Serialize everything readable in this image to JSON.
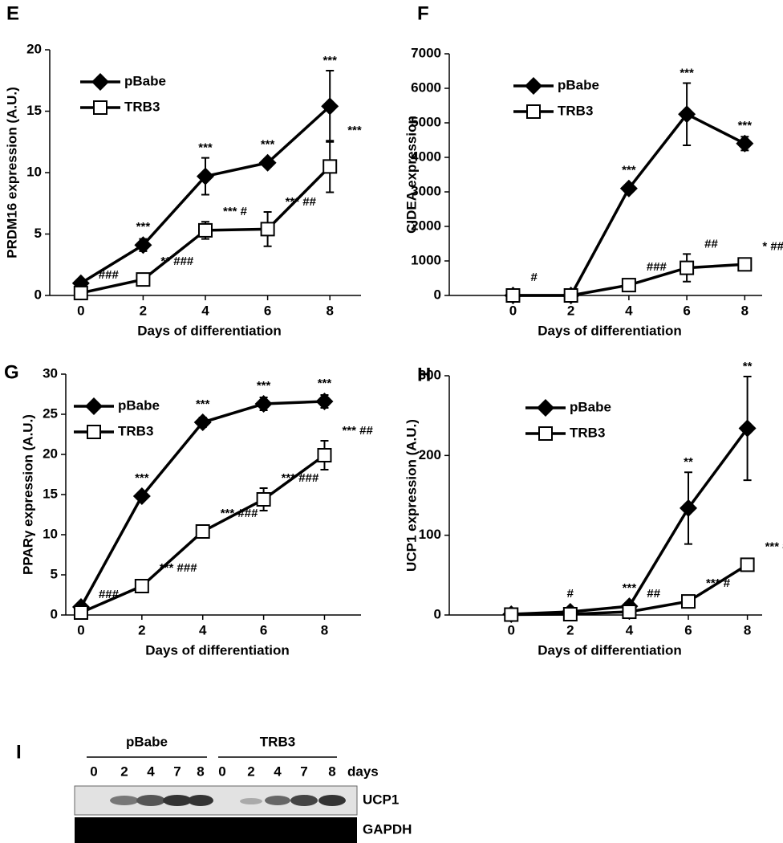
{
  "chart_data": [
    {
      "type": "line",
      "panel": "E",
      "ylabel": "PRDM16 expression (A.U.)",
      "xlabel": "Days of differentiation",
      "x": [
        0,
        2,
        4,
        6,
        8
      ],
      "xlim": [
        -1,
        9
      ],
      "xticks": [
        0,
        2,
        4,
        6,
        8
      ],
      "ylim": [
        0,
        20
      ],
      "yticks": [
        0,
        5,
        10,
        15,
        20
      ],
      "legend": "upper left",
      "series": [
        {
          "name": "pBabe",
          "color": "#000000",
          "marker": "diamond",
          "values": [
            1,
            4.1,
            9.7,
            10.8,
            15.4
          ],
          "errors": [
            0.3,
            0.5,
            1.5,
            0.3,
            2.9
          ],
          "annotations": [
            null,
            "***",
            "***",
            "***",
            "***"
          ]
        },
        {
          "name": "TRB3",
          "color": "#000000",
          "marker": "square",
          "values": [
            0.2,
            1.3,
            5.3,
            5.4,
            10.5
          ],
          "errors": [
            0.1,
            0.2,
            0.7,
            1.4,
            2.1
          ],
          "annotations": [
            "###",
            "** ###",
            "*** #",
            "*** ##",
            "***"
          ]
        }
      ]
    },
    {
      "type": "line",
      "panel": "F",
      "ylabel": "CIDEA expression",
      "xlabel": "Days of differentiation",
      "x": [
        0,
        2,
        4,
        6,
        8
      ],
      "xlim": [
        -2.2,
        8.6
      ],
      "xticks": [
        0,
        2,
        4,
        6,
        8
      ],
      "ylim": [
        0,
        7000
      ],
      "yticks": [
        0,
        1000,
        2000,
        3000,
        4000,
        5000,
        6000,
        7000
      ],
      "legend": "upper left",
      "series": [
        {
          "name": "pBabe",
          "color": "#000000",
          "marker": "diamond",
          "values": [
            0,
            0,
            3100,
            5250,
            4400
          ],
          "errors": [
            0,
            0,
            100,
            900,
            200
          ],
          "annotations": [
            null,
            null,
            "***",
            "***",
            "***"
          ]
        },
        {
          "name": "TRB3",
          "color": "#000000",
          "marker": "square",
          "values": [
            0,
            0,
            300,
            800,
            900
          ],
          "errors": [
            0,
            0,
            100,
            400,
            150
          ],
          "annotations": [
            "#",
            null,
            "###",
            "##",
            "* ##"
          ]
        }
      ]
    },
    {
      "type": "line",
      "panel": "G",
      "ylabel": "PPARγ expression (A.U.)",
      "xlabel": "Days of differentiation",
      "x": [
        0,
        2,
        4,
        6,
        8
      ],
      "xlim": [
        -0.5,
        9.2
      ],
      "xticks": [
        0,
        2,
        4,
        6,
        8
      ],
      "ylim": [
        0,
        30
      ],
      "yticks": [
        0,
        5,
        10,
        15,
        20,
        25,
        30
      ],
      "legend": "upper left",
      "series": [
        {
          "name": "pBabe",
          "color": "#000000",
          "marker": "diamond",
          "values": [
            1,
            14.8,
            24,
            26.3,
            26.6
          ],
          "errors": [
            0.2,
            0.3,
            0.6,
            0.8,
            0.8
          ],
          "annotations": [
            null,
            "***",
            "***",
            "***",
            "***"
          ]
        },
        {
          "name": "TRB3",
          "color": "#000000",
          "marker": "square",
          "values": [
            0.3,
            3.6,
            10.4,
            14.4,
            19.9
          ],
          "errors": [
            0.1,
            0.3,
            0.4,
            1.4,
            1.8
          ],
          "annotations": [
            "###",
            "*** ###",
            "*** ###",
            "*** ###",
            "*** ##"
          ]
        }
      ]
    },
    {
      "type": "line",
      "panel": "H",
      "ylabel": "UCP1 expression (A.U.)",
      "xlabel": "Days of differentiation",
      "x": [
        0,
        2,
        4,
        6,
        8
      ],
      "xlim": [
        -2.1,
        8.5
      ],
      "xticks": [
        0,
        2,
        4,
        6,
        8
      ],
      "ylim": [
        0,
        300
      ],
      "yticks": [
        0,
        100,
        200,
        300
      ],
      "legend": "upper left",
      "series": [
        {
          "name": "pBabe",
          "color": "#000000",
          "marker": "diamond",
          "values": [
            1,
            4,
            11,
            134,
            234
          ],
          "errors": [
            0,
            1,
            3,
            45,
            65
          ],
          "annotations": [
            null,
            "#",
            "***",
            "**",
            "**"
          ]
        },
        {
          "name": "TRB3",
          "color": "#000000",
          "marker": "square",
          "values": [
            0.5,
            1,
            4,
            17,
            63
          ],
          "errors": [
            0,
            0,
            1,
            3,
            3
          ],
          "annotations": [
            null,
            null,
            "##",
            "*** #",
            "*** #"
          ]
        }
      ]
    }
  ],
  "blot": {
    "panel": "I",
    "groups": [
      "pBabe",
      "TRB3"
    ],
    "lanes": [
      "0",
      "2",
      "4",
      "7",
      "8",
      "0",
      "2",
      "4",
      "7",
      "8"
    ],
    "unit": "days",
    "rows": [
      "UCP1",
      "GAPDH"
    ]
  }
}
